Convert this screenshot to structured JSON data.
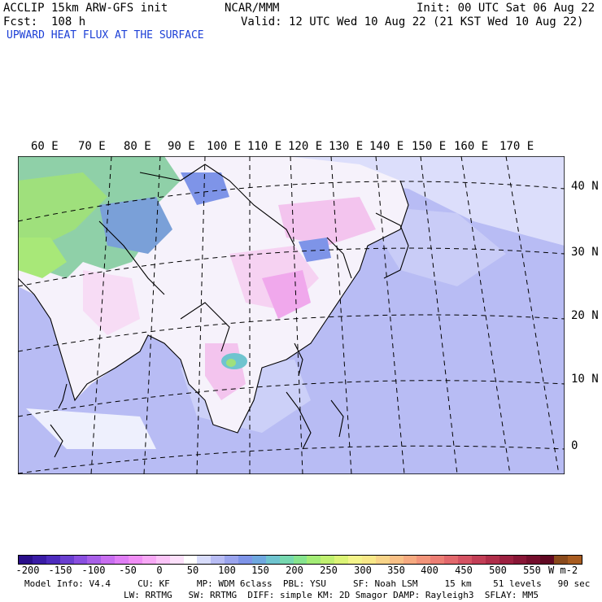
{
  "header": {
    "model": "ACCLIP 15km ARW-GFS init",
    "org": "NCAR/MMM",
    "init": "Init: 00 UTC Sat 06 Aug 22",
    "fcst": "Fcst:  108 h",
    "valid": "Valid: 12 UTC Wed 10 Aug 22 (21 KST Wed 10 Aug 22)",
    "field": "UPWARD HEAT FLUX AT THE SURFACE"
  },
  "map": {
    "lon_labels": [
      "60 E",
      "70 E",
      "80 E",
      "90 E",
      "100 E",
      "110 E",
      "120 E",
      "130 E",
      "140 E",
      "150 E",
      "160 E",
      "170 E"
    ],
    "lat_labels": [
      "40 N",
      "30 N",
      "20 N",
      "10 N",
      "0"
    ]
  },
  "colorbar": {
    "ticks": [
      "-200",
      "-150",
      "-100",
      "-50",
      "0",
      "50",
      "100",
      "150",
      "200",
      "250",
      "300",
      "350",
      "400",
      "450",
      "500",
      "550"
    ],
    "units": "W m-2",
    "colors": [
      "#2a0f8a",
      "#3a1ca6",
      "#4d2bbd",
      "#6a3fd0",
      "#8a4fe0",
      "#a85fe8",
      "#c86ef0",
      "#e07ef5",
      "#f08ef5",
      "#f7a8f5",
      "#fbc4f7",
      "#fde0fb",
      "#ffffff",
      "#d8dcfb",
      "#b8bcf4",
      "#9aa4ee",
      "#7e94e8",
      "#6fa8e0",
      "#6fc4cf",
      "#76d8b0",
      "#86e48e",
      "#a3ec76",
      "#c0f070",
      "#dcf476",
      "#f4f48a",
      "#f8e888",
      "#f8d488",
      "#f8c086",
      "#f6aa80",
      "#f2947a",
      "#ec7e74",
      "#e2686c",
      "#d45262",
      "#c23e56",
      "#b02e4a",
      "#9c2040",
      "#881636",
      "#740e2c",
      "#600822",
      "#8a4a1c",
      "#a85c20"
    ]
  },
  "footer": {
    "line1": "Model Info: V4.4     CU: KF     MP: WDM 6class  PBL: YSU     SF: Noah LSM     15 km    51 levels   90 sec",
    "line2": "LW: RRTMG   SW: RRTMG  DIFF: simple KM: 2D Smagor DAMP: Rayleigh3  SFLAY: MM5"
  }
}
